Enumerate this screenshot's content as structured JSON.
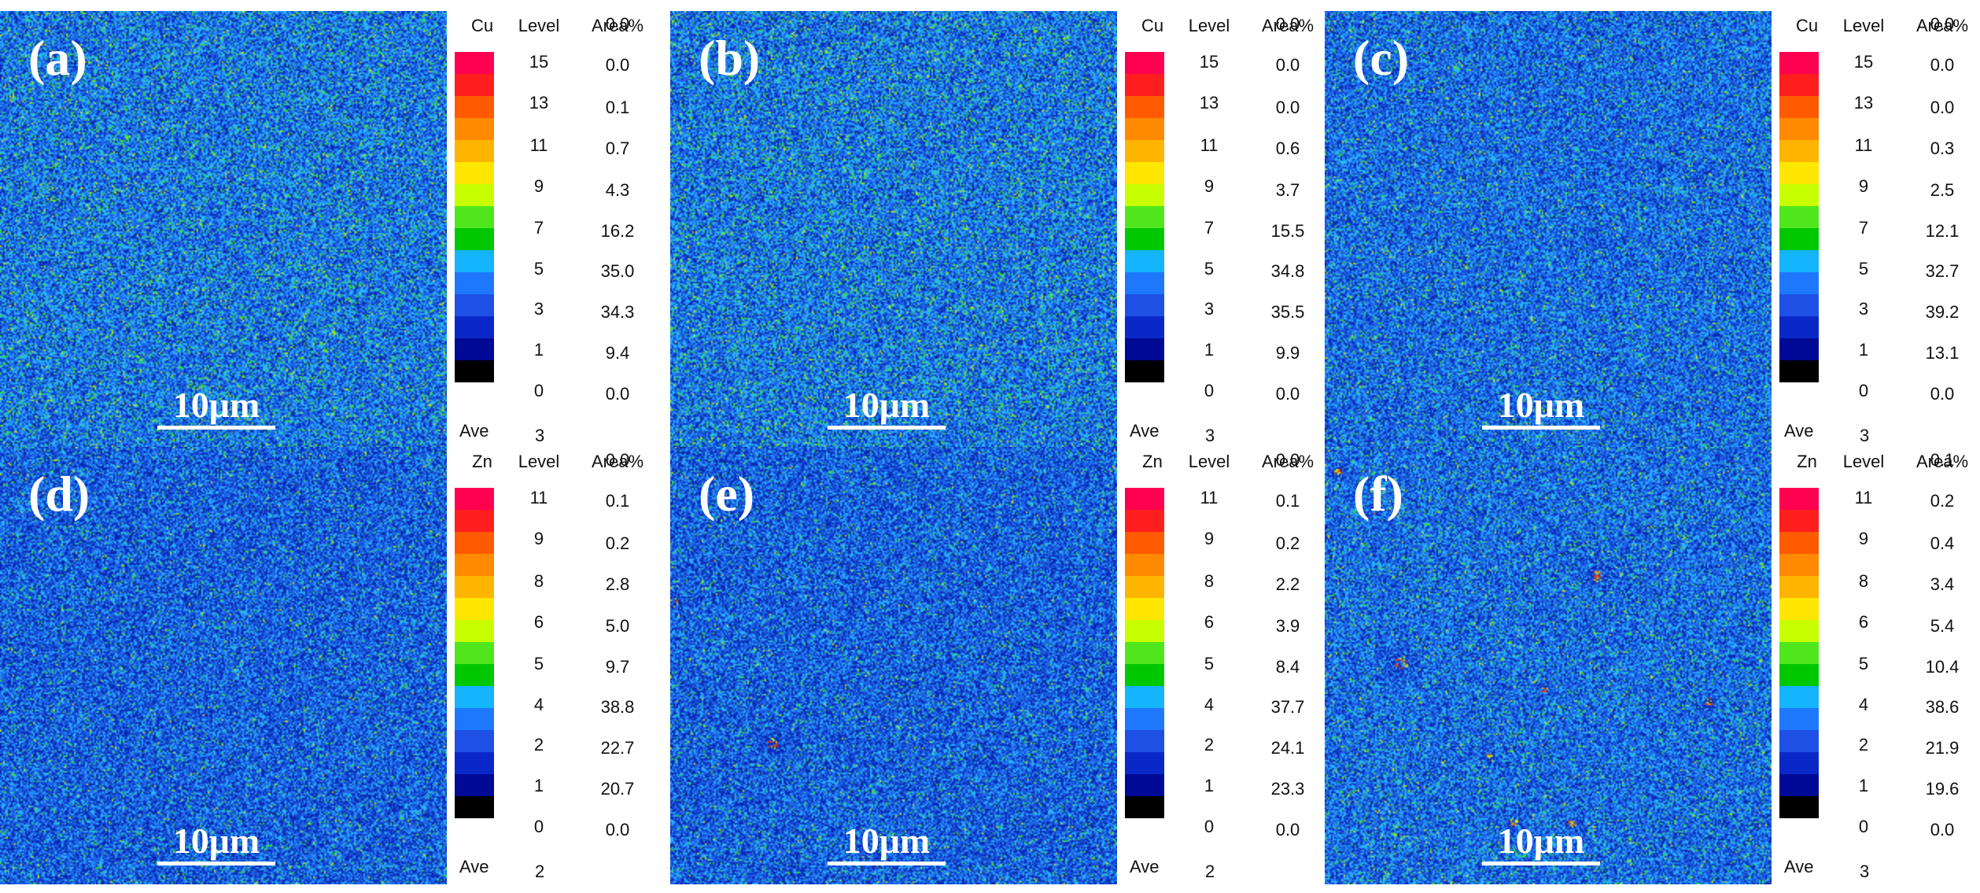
{
  "colorbar_colors": [
    "#ff0050",
    "#ff1e1e",
    "#ff5a00",
    "#ff8a00",
    "#ffb400",
    "#ffe600",
    "#c8ff00",
    "#50e61e",
    "#00c800",
    "#14b4ff",
    "#1e78ff",
    "#1e50e6",
    "#0a28c8",
    "#000a96",
    "#000000"
  ],
  "noise_colors": {
    "deep": "#0a28b4",
    "blue": "#1e64e6",
    "cyan": "#28b4ff",
    "green": "#3cdc3c",
    "yellow": "#d2f000",
    "red": "#ff3c00"
  },
  "labels": {
    "level": "Level",
    "area": "Area%",
    "ave": "Ave",
    "scale": "10μm"
  },
  "panels": [
    {
      "letter": "(a)",
      "element": "Cu",
      "ave_value": "3",
      "levels": [
        "15",
        "13",
        "11",
        "9",
        "7",
        "5",
        "3",
        "1",
        "0"
      ],
      "areas": [
        "0.0",
        "0.0",
        "0.1",
        "0.7",
        "4.3",
        "16.2",
        "35.0",
        "34.3",
        "9.4",
        "0.0"
      ],
      "noise_level": "high",
      "hotspot_count": 0
    },
    {
      "letter": "(b)",
      "element": "Cu",
      "ave_value": "3",
      "levels": [
        "15",
        "13",
        "11",
        "9",
        "7",
        "5",
        "3",
        "1",
        "0"
      ],
      "areas": [
        "0.0",
        "0.0",
        "0.0",
        "0.6",
        "3.7",
        "15.5",
        "34.8",
        "35.5",
        "9.9",
        "0.0"
      ],
      "noise_level": "high",
      "hotspot_count": 0
    },
    {
      "letter": "(c)",
      "element": "Cu",
      "ave_value": "3",
      "levels": [
        "15",
        "13",
        "11",
        "9",
        "7",
        "5",
        "3",
        "1",
        "0"
      ],
      "areas": [
        "0.0",
        "0.0",
        "0.0",
        "0.3",
        "2.5",
        "12.1",
        "32.7",
        "39.2",
        "13.1",
        "0.0"
      ],
      "noise_level": "medium",
      "hotspot_count": 0
    },
    {
      "letter": "(d)",
      "element": "Zn",
      "ave_value": "2",
      "levels": [
        "11",
        "9",
        "8",
        "6",
        "5",
        "4",
        "2",
        "1",
        "0"
      ],
      "areas": [
        "0.0",
        "0.1",
        "0.2",
        "2.8",
        "5.0",
        "9.7",
        "38.8",
        "22.7",
        "20.7",
        "0.0"
      ],
      "noise_level": "low",
      "hotspot_count": 0
    },
    {
      "letter": "(e)",
      "element": "Zn",
      "ave_value": "2",
      "levels": [
        "11",
        "9",
        "8",
        "6",
        "5",
        "4",
        "2",
        "1",
        "0"
      ],
      "areas": [
        "0.0",
        "0.1",
        "0.2",
        "2.2",
        "3.9",
        "8.4",
        "37.7",
        "24.1",
        "23.3",
        "0.0"
      ],
      "noise_level": "low",
      "hotspot_count": 2
    },
    {
      "letter": "(f)",
      "element": "Zn",
      "ave_value": "3",
      "levels": [
        "11",
        "9",
        "8",
        "6",
        "5",
        "4",
        "2",
        "1",
        "0"
      ],
      "areas": [
        "0.1",
        "0.2",
        "0.4",
        "3.4",
        "5.4",
        "10.4",
        "38.6",
        "21.9",
        "19.6",
        "0.0"
      ],
      "noise_level": "medium",
      "hotspot_count": 9
    }
  ]
}
